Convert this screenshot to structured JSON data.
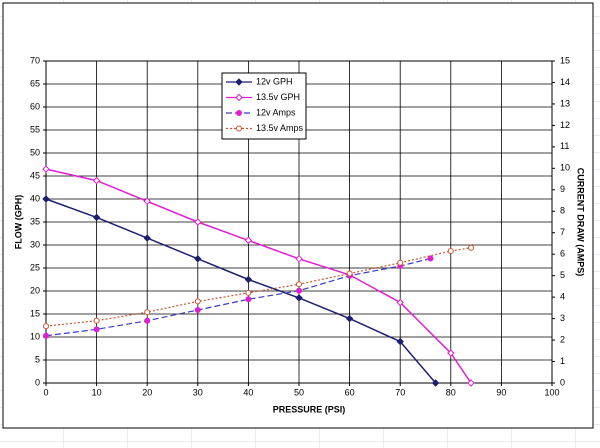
{
  "chart_data": {
    "type": "line",
    "x_label": "PRESSURE (PSI)",
    "y_label": "FLOW (GPH)",
    "y2_label": "CURRENT DRAW (AMPS)",
    "xlim": [
      0,
      100
    ],
    "xticks": [
      0,
      10,
      20,
      30,
      40,
      50,
      60,
      70,
      80,
      90,
      100
    ],
    "ylim": [
      0,
      70
    ],
    "yticks": [
      0,
      5,
      10,
      15,
      20,
      25,
      30,
      35,
      40,
      45,
      50,
      55,
      60,
      65,
      70
    ],
    "y2lim": [
      0,
      15
    ],
    "y2ticks": [
      0,
      1,
      2,
      3,
      4,
      5,
      6,
      7,
      8,
      9,
      10,
      11,
      12,
      13,
      14,
      15
    ],
    "grid": true,
    "series": [
      {
        "name": "12v GPH",
        "color": "#1f1f70",
        "marker": "filled-diamond",
        "dash": "solid",
        "x": [
          0,
          10,
          20,
          30,
          40,
          50,
          60,
          70,
          77
        ],
        "values": [
          40,
          36,
          31.5,
          27,
          22.5,
          18.5,
          14,
          9,
          0
        ]
      },
      {
        "name": "13.5v GPH",
        "color": "#e020d0",
        "marker": "open-diamond",
        "dash": "solid",
        "x": [
          0,
          10,
          20,
          30,
          40,
          50,
          60,
          70,
          80,
          84
        ],
        "values": [
          46.5,
          44,
          39.5,
          35,
          31,
          27,
          23.5,
          17.5,
          6.5,
          0
        ]
      },
      {
        "name": "12v Amps",
        "color": "#3a3acc",
        "marker_color": "#e020d0",
        "marker": "filled-circle",
        "dash": "dashed",
        "axis": "y2",
        "x": [
          0,
          10,
          20,
          30,
          40,
          50,
          60,
          70,
          76
        ],
        "values": [
          2.2,
          2.5,
          2.9,
          3.4,
          3.9,
          4.3,
          5,
          5.45,
          5.8
        ]
      },
      {
        "name": "13.5v Amps",
        "color": "#cc5533",
        "marker": "open-circle",
        "dash": "dotted",
        "axis": "y2",
        "x": [
          0,
          10,
          20,
          30,
          40,
          50,
          60,
          70,
          80,
          84
        ],
        "values": [
          2.65,
          2.9,
          3.3,
          3.8,
          4.2,
          4.6,
          5.1,
          5.6,
          6.15,
          6.3
        ]
      }
    ]
  }
}
